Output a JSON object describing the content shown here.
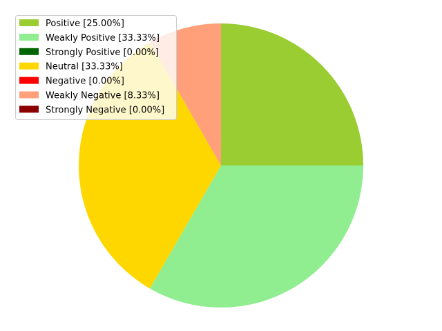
{
  "chart_data": {
    "type": "pie",
    "title": "",
    "start_angle_deg": 90,
    "direction": "clockwise",
    "legend_placement": "top-left",
    "slices": [
      {
        "label": "Positive [25.00%]",
        "value": 25.0,
        "color": "#9acd32"
      },
      {
        "label": "Weakly Positive [33.33%]",
        "value": 33.33,
        "color": "#90ee90"
      },
      {
        "label": "Strongly Positive [0.00%]",
        "value": 0.0,
        "color": "#006400"
      },
      {
        "label": "Neutral [33.33%]",
        "value": 33.33,
        "color": "#ffd700"
      },
      {
        "label": "Negative [0.00%]",
        "value": 0.0,
        "color": "#ff0000"
      },
      {
        "label": "Weakly Negative [8.33%]",
        "value": 8.33,
        "color": "#ffa07a"
      },
      {
        "label": "Strongly Negative [0.00%]",
        "value": 0.0,
        "color": "#8b0000"
      }
    ]
  }
}
